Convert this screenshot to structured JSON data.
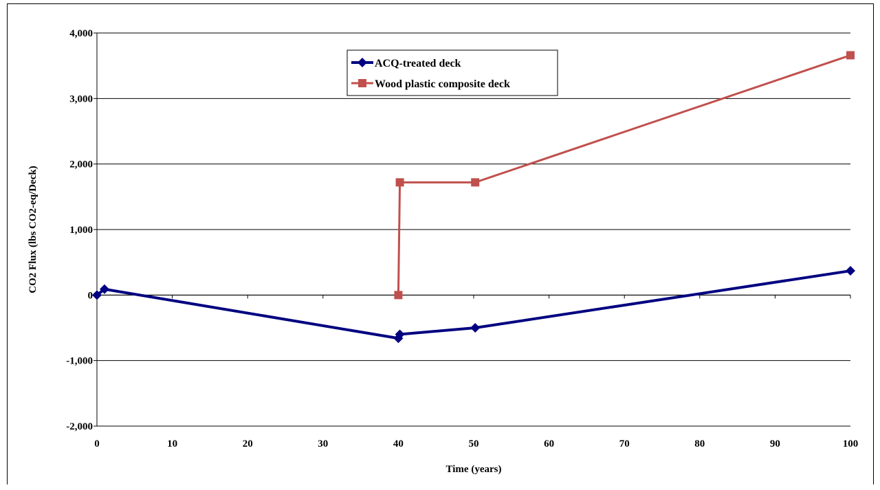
{
  "chart_data": {
    "type": "line",
    "title": "",
    "xlabel": "Time (years)",
    "ylabel": "CO2 Flux (lbs CO2-eq/Deck)",
    "xlim": [
      0,
      100
    ],
    "ylim": [
      -2000,
      4000
    ],
    "xticks": [
      0,
      10,
      20,
      30,
      40,
      50,
      60,
      70,
      80,
      90,
      100
    ],
    "yticks": [
      -2000,
      -1000,
      0,
      1000,
      2000,
      3000,
      4000
    ],
    "xtick_labels": [
      "0",
      "10",
      "20",
      "30",
      "40",
      "50",
      "60",
      "70",
      "80",
      "90",
      "100"
    ],
    "ytick_labels": [
      "-2,000",
      "-1,000",
      "0",
      "1,000",
      "2,000",
      "3,000",
      "4,000"
    ],
    "grid": "horizontal",
    "legend_position": "top-center",
    "series": [
      {
        "name": "ACQ-treated deck",
        "color": "#000080",
        "marker": "diamond",
        "points": [
          [
            0,
            0
          ],
          [
            1,
            90
          ],
          [
            40,
            -660
          ],
          [
            40.2,
            -600
          ],
          [
            50.2,
            -500
          ],
          [
            100,
            370
          ]
        ]
      },
      {
        "name": "Wood plastic composite deck",
        "color": "#C0504D",
        "marker": "square",
        "points": [
          [
            40,
            0
          ],
          [
            40.2,
            1720
          ],
          [
            50.2,
            1720
          ],
          [
            100,
            3660
          ]
        ]
      }
    ]
  }
}
